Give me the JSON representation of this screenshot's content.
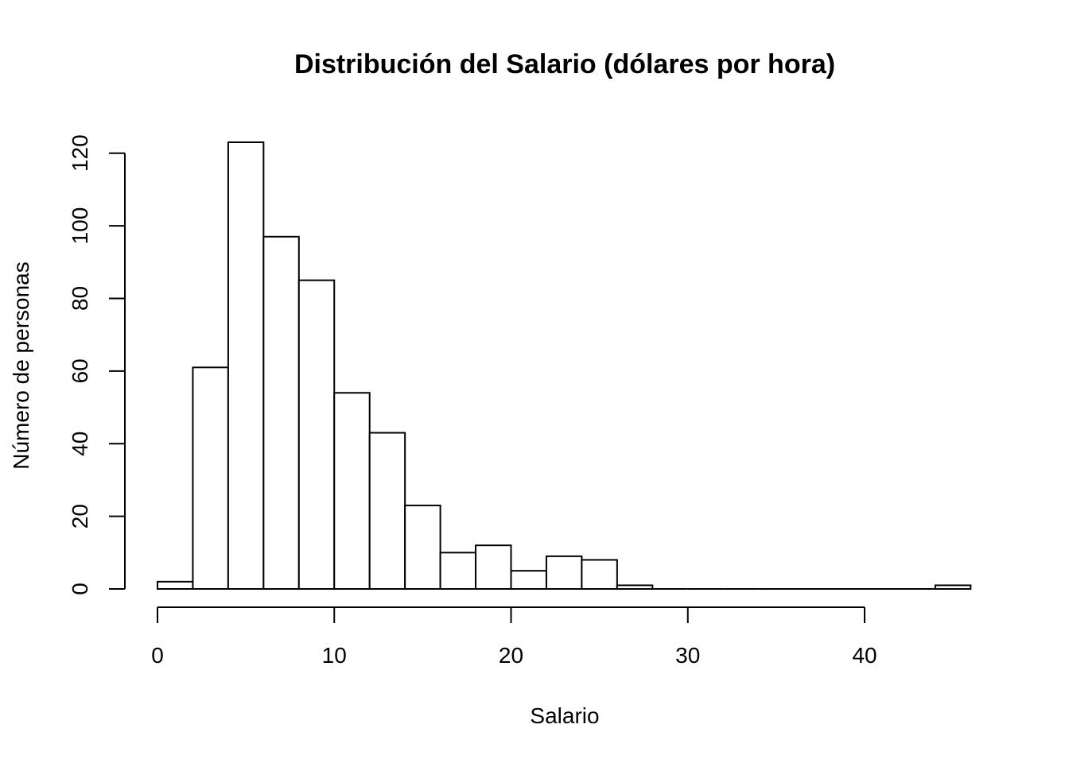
{
  "chart_data": {
    "type": "bar",
    "title": "Distribución del Salario (dólares por hora)",
    "xlabel": "Salario",
    "ylabel": "Número de personas",
    "bin_edges": [
      0,
      2,
      4,
      6,
      8,
      10,
      12,
      14,
      16,
      18,
      20,
      22,
      24,
      26,
      28,
      30,
      32,
      34,
      36,
      38,
      40,
      42,
      44,
      46
    ],
    "values": [
      2,
      61,
      123,
      97,
      85,
      54,
      43,
      23,
      10,
      12,
      5,
      9,
      8,
      1,
      0,
      0,
      0,
      0,
      0,
      0,
      0,
      0,
      1
    ],
    "xlim": [
      0,
      46
    ],
    "ylim": [
      0,
      123
    ],
    "xticks": [
      0,
      10,
      20,
      30,
      40
    ],
    "xtick_labels": [
      "0",
      "10",
      "20",
      "30",
      "40"
    ],
    "yticks": [
      0,
      20,
      40,
      60,
      80,
      100,
      120
    ],
    "ytick_labels": [
      "0",
      "20",
      "40",
      "60",
      "80",
      "100",
      "120"
    ],
    "grid": false,
    "colors": {
      "bar_fill": "#ffffff",
      "bar_stroke": "#000000"
    }
  }
}
